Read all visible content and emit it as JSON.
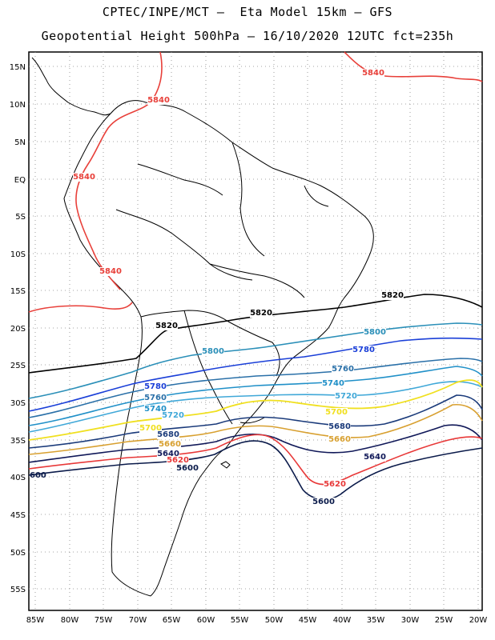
{
  "header": {
    "title_line1": "CPTEC/INPE/MCT –  Eta Model 15km – GFS",
    "title_line2": "Geopotential Height 500hPa – 16/10/2020 12UTC fct=235h"
  },
  "axes": {
    "lat_labels": [
      "15N",
      "10N",
      "5N",
      "EQ",
      "5S",
      "10S",
      "15S",
      "20S",
      "25S",
      "30S",
      "35S",
      "40S",
      "45S",
      "50S",
      "55S"
    ],
    "lon_labels": [
      "85W",
      "80W",
      "75W",
      "70W",
      "65W",
      "60W",
      "55W",
      "50W",
      "45W",
      "40W",
      "35W",
      "30W",
      "25W",
      "20W"
    ]
  },
  "contours": [
    {
      "value": "5840",
      "color": "#e8403a"
    },
    {
      "value": "5820",
      "color": "#000000"
    },
    {
      "value": "5800",
      "color": "#2a8fb8"
    },
    {
      "value": "5780",
      "color": "#1a3fd8"
    },
    {
      "value": "5760",
      "color": "#2a70a8"
    },
    {
      "value": "5740",
      "color": "#2090c8"
    },
    {
      "value": "5720",
      "color": "#40a8d8"
    },
    {
      "value": "5700",
      "color": "#f0e020"
    },
    {
      "value": "5680",
      "color": "#1a3a7a"
    },
    {
      "value": "5660",
      "color": "#d8a030"
    },
    {
      "value": "5640",
      "color": "#101858"
    },
    {
      "value": "5620",
      "color": "#e83838"
    },
    {
      "value": "5600",
      "color": "#0a1a4a"
    }
  ],
  "labels_extra": {
    "edge_5600": "600"
  }
}
